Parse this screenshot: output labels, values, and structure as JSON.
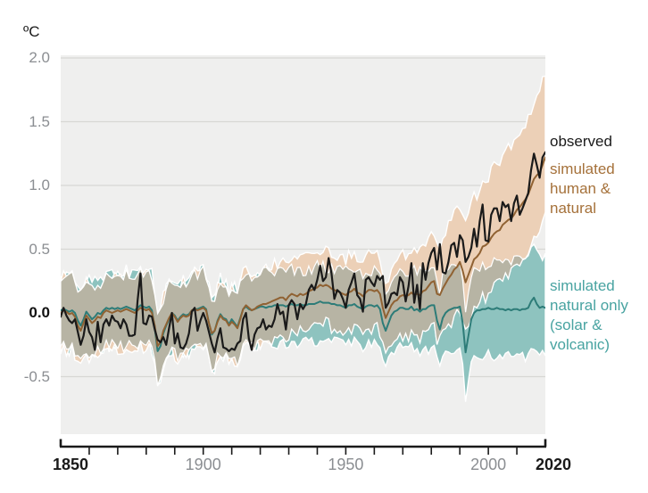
{
  "unit_label": "ºC",
  "legend": {
    "observed": {
      "label": "observed",
      "color": "#1a1a1a"
    },
    "human_natural": {
      "label": "simulated\nhuman &\nnatural",
      "color": "#a5713a"
    },
    "natural_only": {
      "label": "simulated\nnatural only\n(solar &\nvolcanic)",
      "color": "#48a3a1"
    }
  },
  "chart_data": {
    "type": "line",
    "title": "",
    "ylabel_unit": "ºC",
    "years": {
      "start": 1850,
      "end": 2020,
      "step": 1
    },
    "ylim": [
      -0.95,
      2.02
    ],
    "yticks": [
      2.0,
      1.5,
      1.0,
      0.5,
      0.0,
      -0.5
    ],
    "ytick_labels": [
      "2.0",
      "1.5",
      "1.0",
      "0.5",
      "0.0",
      "-0.5"
    ],
    "xtick_minor_step": 10,
    "xticks_labeled": [
      1850,
      1900,
      1950,
      2000,
      2020
    ],
    "background": "#efefee",
    "gridline_color": "#d7d7d4",
    "axis_color": "#1a1a1a",
    "band_overlap_fill": "#b7b4a4",
    "band_jitter_amp": 0.05,
    "series": [
      {
        "name": "observed",
        "color": "#1a1a1a",
        "values": [
          -0.03,
          0.04,
          -0.02,
          -0.06,
          -0.08,
          -0.05,
          -0.15,
          -0.25,
          -0.18,
          -0.05,
          -0.15,
          -0.19,
          -0.29,
          -0.07,
          -0.23,
          -0.09,
          -0.05,
          -0.1,
          -0.02,
          -0.06,
          -0.07,
          -0.12,
          -0.05,
          -0.09,
          -0.18,
          -0.18,
          -0.17,
          0.1,
          0.31,
          -0.08,
          -0.09,
          -0.02,
          -0.03,
          -0.13,
          -0.21,
          -0.23,
          -0.19,
          -0.25,
          -0.12,
          0.0,
          -0.24,
          -0.16,
          -0.27,
          -0.28,
          -0.24,
          -0.16,
          0.01,
          0.04,
          -0.14,
          -0.06,
          0.0,
          -0.06,
          -0.15,
          -0.24,
          -0.31,
          -0.2,
          -0.12,
          -0.27,
          -0.28,
          -0.3,
          -0.28,
          -0.29,
          -0.24,
          -0.22,
          -0.05,
          0.0,
          -0.2,
          -0.29,
          -0.17,
          -0.12,
          -0.11,
          -0.05,
          -0.13,
          -0.1,
          -0.11,
          -0.05,
          0.07,
          -0.01,
          0.01,
          -0.13,
          0.06,
          0.1,
          0.07,
          -0.05,
          0.07,
          0.03,
          0.07,
          0.18,
          0.22,
          0.18,
          0.26,
          0.37,
          0.25,
          0.28,
          0.43,
          0.31,
          0.11,
          0.18,
          0.16,
          0.11,
          0.04,
          0.18,
          0.24,
          0.31,
          0.14,
          0.11,
          0.01,
          0.26,
          0.28,
          0.24,
          0.21,
          0.29,
          0.26,
          0.29,
          0.04,
          0.08,
          0.15,
          0.16,
          0.14,
          0.28,
          0.24,
          0.09,
          0.21,
          0.39,
          0.08,
          0.22,
          0.03,
          0.39,
          0.26,
          0.39,
          0.47,
          0.51,
          0.34,
          0.54,
          0.32,
          0.31,
          0.4,
          0.53,
          0.55,
          0.44,
          0.61,
          0.57,
          0.4,
          0.44,
          0.51,
          0.66,
          0.52,
          0.72,
          0.85,
          0.57,
          0.56,
          0.77,
          0.82,
          0.82,
          0.72,
          0.87,
          0.83,
          0.85,
          0.72,
          0.86,
          0.92,
          0.77,
          0.82,
          0.88,
          0.94,
          1.12,
          1.25,
          1.16,
          1.06,
          1.22,
          1.26
        ]
      },
      {
        "name": "simulated human & natural",
        "color": "#906233",
        "values": [
          0.0,
          0.02,
          0.01,
          -0.01,
          0.0,
          -0.03,
          -0.1,
          -0.14,
          -0.08,
          -0.02,
          -0.05,
          -0.08,
          -0.06,
          -0.03,
          -0.04,
          0.0,
          0.02,
          0.01,
          0.0,
          0.01,
          0.02,
          0.01,
          0.02,
          0.03,
          0.02,
          0.01,
          0.0,
          0.02,
          0.04,
          0.03,
          0.02,
          0.03,
          0.0,
          -0.1,
          -0.26,
          -0.23,
          -0.14,
          -0.09,
          -0.04,
          0.0,
          -0.03,
          -0.07,
          -0.04,
          -0.02,
          -0.03,
          -0.02,
          0.02,
          0.03,
          0.02,
          0.03,
          0.04,
          0.02,
          -0.08,
          -0.16,
          -0.14,
          -0.07,
          -0.02,
          -0.05,
          -0.06,
          -0.1,
          -0.07,
          -0.09,
          -0.12,
          -0.05,
          0.03,
          0.06,
          0.04,
          0.02,
          0.03,
          0.05,
          0.06,
          0.07,
          0.07,
          0.08,
          0.09,
          0.1,
          0.11,
          0.12,
          0.12,
          0.1,
          0.13,
          0.15,
          0.14,
          0.13,
          0.15,
          0.14,
          0.15,
          0.17,
          0.18,
          0.19,
          0.2,
          0.22,
          0.21,
          0.22,
          0.21,
          0.19,
          0.18,
          0.17,
          0.16,
          0.15,
          0.14,
          0.16,
          0.17,
          0.19,
          0.16,
          0.15,
          0.13,
          0.16,
          0.18,
          0.18,
          0.17,
          0.18,
          0.15,
          0.04,
          -0.04,
          0.01,
          0.06,
          0.09,
          0.1,
          0.13,
          0.14,
          0.13,
          0.14,
          0.16,
          0.14,
          0.15,
          0.14,
          0.17,
          0.18,
          0.21,
          0.24,
          0.25,
          0.15,
          0.14,
          0.19,
          0.23,
          0.27,
          0.3,
          0.34,
          0.36,
          0.4,
          0.33,
          0.24,
          0.3,
          0.36,
          0.42,
          0.44,
          0.47,
          0.52,
          0.53,
          0.55,
          0.59,
          0.62,
          0.64,
          0.65,
          0.69,
          0.71,
          0.73,
          0.74,
          0.77,
          0.81,
          0.83,
          0.86,
          0.89,
          0.93,
          0.99,
          1.05,
          1.08,
          1.1,
          1.16,
          1.22
        ]
      },
      {
        "name": "simulated natural only (solar & volcanic)",
        "color": "#2d7c78",
        "values": [
          0.02,
          0.03,
          0.02,
          0.01,
          0.02,
          0.0,
          -0.06,
          -0.1,
          -0.05,
          0.01,
          -0.02,
          -0.05,
          -0.03,
          0.0,
          -0.01,
          0.02,
          0.04,
          0.03,
          0.04,
          0.03,
          0.04,
          0.03,
          0.04,
          0.05,
          0.04,
          0.03,
          0.02,
          0.04,
          0.06,
          0.05,
          0.04,
          0.05,
          0.02,
          -0.12,
          -0.3,
          -0.26,
          -0.16,
          -0.1,
          -0.05,
          0.0,
          -0.02,
          -0.06,
          -0.03,
          -0.01,
          -0.02,
          -0.01,
          0.02,
          0.03,
          0.03,
          0.04,
          0.05,
          0.03,
          -0.08,
          -0.17,
          -0.14,
          -0.06,
          -0.01,
          -0.04,
          -0.05,
          -0.09,
          -0.05,
          -0.08,
          -0.11,
          -0.04,
          0.03,
          0.05,
          0.03,
          0.02,
          0.03,
          0.04,
          0.05,
          0.05,
          0.04,
          0.05,
          0.05,
          0.06,
          0.06,
          0.06,
          0.06,
          0.05,
          0.06,
          0.07,
          0.06,
          0.06,
          0.07,
          0.06,
          0.06,
          0.07,
          0.07,
          0.07,
          0.08,
          0.09,
          0.08,
          0.08,
          0.08,
          0.07,
          0.07,
          0.06,
          0.06,
          0.05,
          0.04,
          0.06,
          0.06,
          0.07,
          0.05,
          0.04,
          0.03,
          0.05,
          0.06,
          0.06,
          0.05,
          0.06,
          0.03,
          -0.08,
          -0.14,
          -0.08,
          -0.02,
          0.01,
          0.02,
          0.04,
          0.04,
          0.03,
          0.03,
          0.05,
          0.02,
          0.03,
          0.01,
          0.03,
          0.03,
          0.05,
          0.06,
          0.06,
          -0.06,
          -0.13,
          -0.04,
          0.0,
          0.02,
          0.03,
          0.04,
          0.04,
          0.05,
          -0.08,
          -0.31,
          -0.18,
          -0.05,
          0.0,
          0.02,
          0.02,
          0.03,
          0.03,
          0.04,
          0.03,
          0.03,
          0.04,
          0.03,
          0.03,
          0.02,
          0.03,
          0.02,
          0.03,
          0.03,
          0.02,
          0.03,
          0.03,
          0.04,
          0.09,
          0.12,
          0.07,
          0.04,
          0.05,
          0.04
        ]
      }
    ],
    "bands": [
      {
        "name": "simulated human & natural range",
        "fill": "#ecd0b7",
        "around_series": 1,
        "widen_from_year": 1965,
        "upper_width_start": 0.28,
        "upper_width_end": 0.65,
        "lower_width_start": 0.3,
        "lower_width_end": 0.47
      },
      {
        "name": "simulated natural only range",
        "fill": "#8ec3bf",
        "around_series": 2,
        "widen_from_year": 1960,
        "upper_width_start": 0.28,
        "upper_width_end": 0.4,
        "lower_width_start": 0.3,
        "lower_width_end": 0.38
      }
    ]
  }
}
